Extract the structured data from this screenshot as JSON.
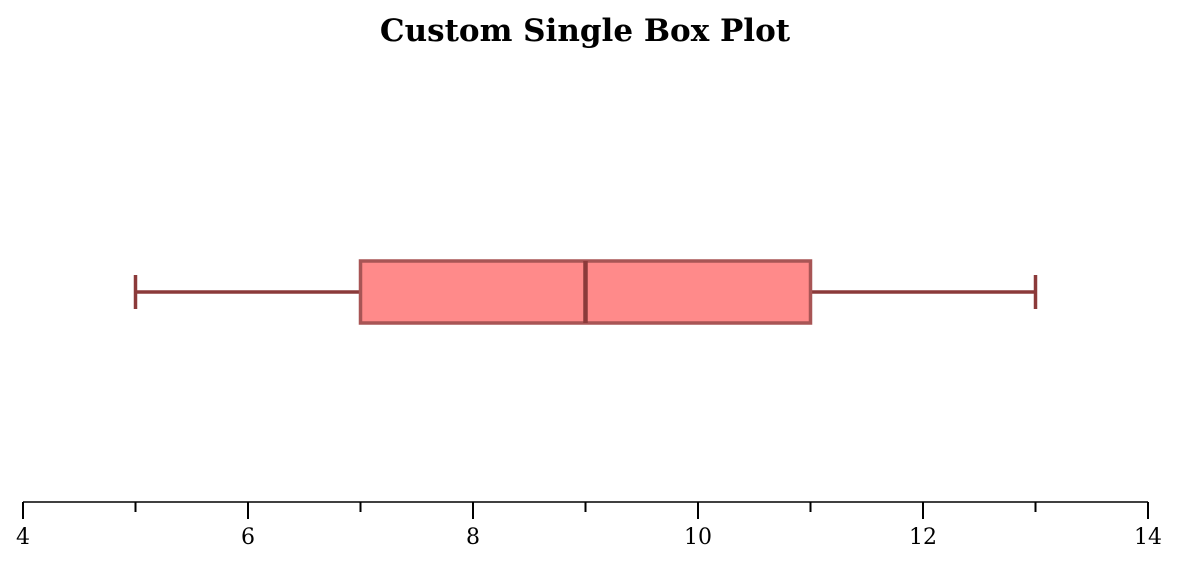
{
  "chart_data": {
    "type": "box",
    "title": "Custom Single Box Plot",
    "xlabel": "",
    "ylabel": "",
    "orientation": "horizontal",
    "xlim": [
      4,
      14
    ],
    "major_ticks": [
      4,
      6,
      8,
      10,
      12,
      14
    ],
    "major_tick_labels": [
      "4",
      "6",
      "8",
      "10",
      "12",
      "14"
    ],
    "minor_ticks": [
      5,
      7,
      9,
      11,
      13
    ],
    "grid": false,
    "box": {
      "whisker_low": 5,
      "q1": 7,
      "median": 9,
      "q3": 11,
      "whisker_high": 13
    },
    "colors": {
      "box_fill": "#ff8a8a",
      "box_edge": "#a85555",
      "median": "#8b3a3a",
      "whisker": "#8b3a3a"
    }
  }
}
